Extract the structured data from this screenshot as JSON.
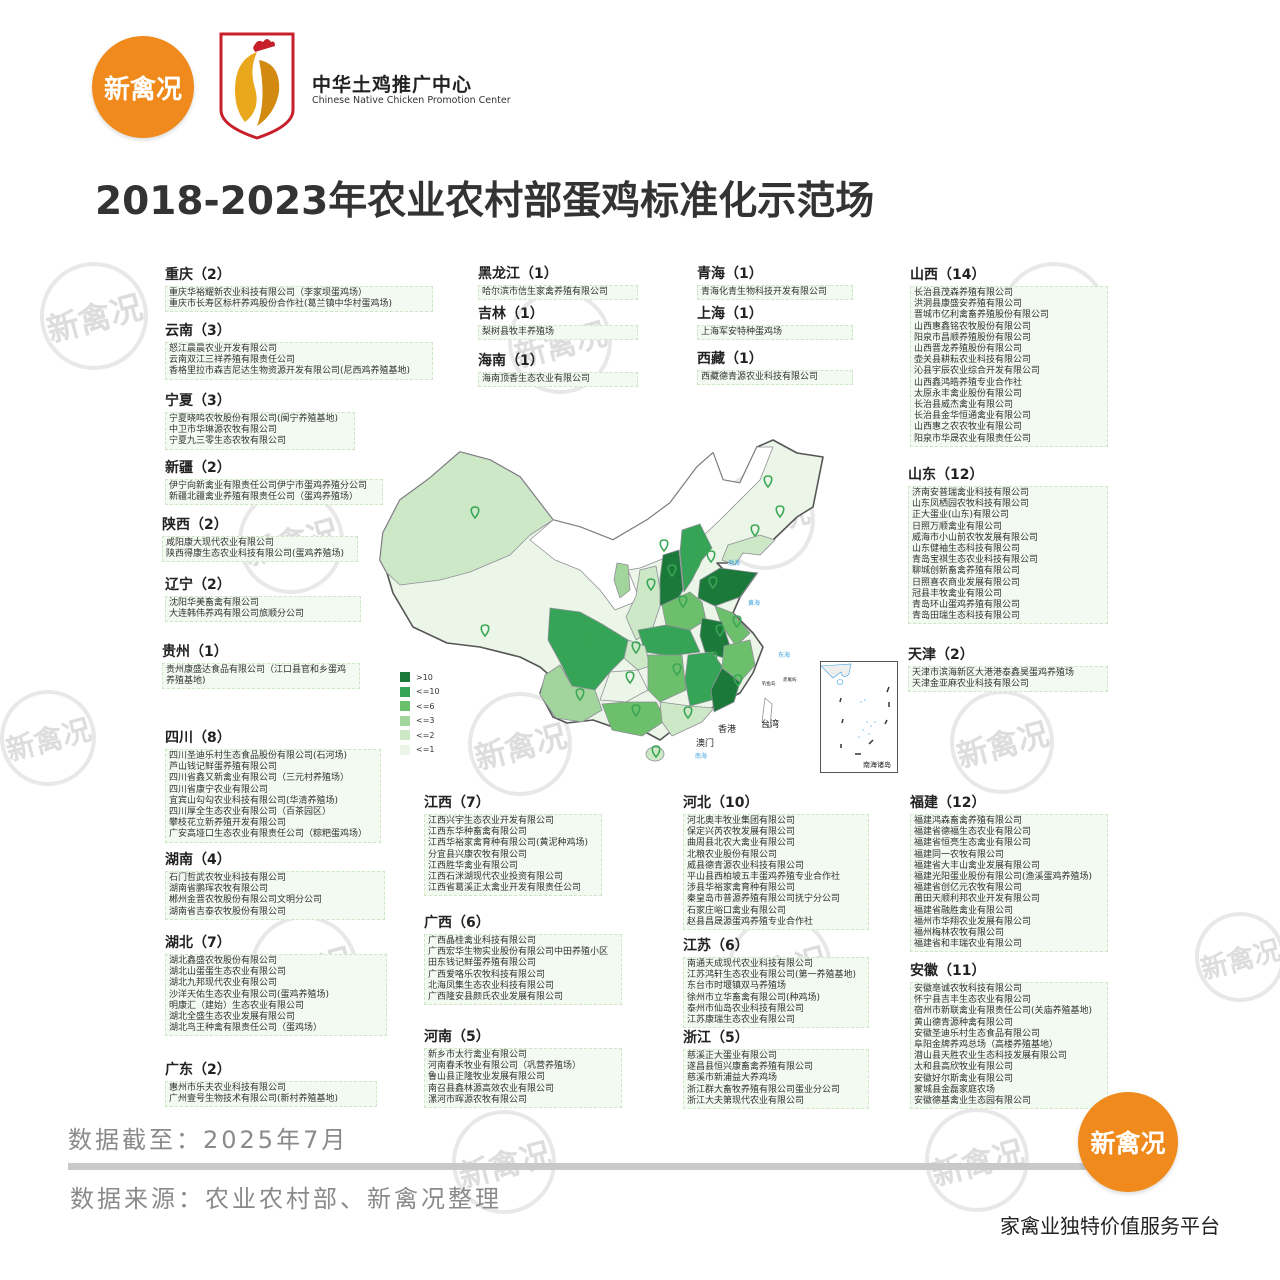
{
  "header": {
    "brand_logo_text": "新禽况",
    "org_name": "中华土鸡推广中心",
    "org_name_en": "Chinese Native Chicken Promotion Center",
    "title": "2018-2023年农业农村部蛋鸡标准化示范场"
  },
  "watermark_text": "新禽况",
  "provinces": [
    {
      "name": "重庆",
      "count": 2,
      "companies": [
        "重庆华裕耀新农业科技有限公司（李家坝蛋鸡场）",
        "重庆市长寿区标杆养鸡股份合作社(葛兰镇中华村蛋鸡场)"
      ]
    },
    {
      "name": "云南",
      "count": 3,
      "companies": [
        "怒江晨晨农业开发有限公司",
        "云南双江三祥养殖有限责任公司",
        "香格里拉市森吉尼达生物资源开发有限公司(尼西鸡养殖基地)"
      ]
    },
    {
      "name": "宁夏",
      "count": 3,
      "companies": [
        "宁夏晓鸣农牧股份有限公司(闽宁养殖基地)",
        "中卫市华琳源农牧有限公司",
        "宁夏九三零生态农牧有限公司"
      ]
    },
    {
      "name": "新疆",
      "count": 2,
      "companies": [
        "伊宁向新禽业有限责任公司伊宁市蛋鸡养殖分公司",
        "新疆北疆禽业养殖有限责任公司（蛋鸡养殖场）"
      ]
    },
    {
      "name": "陕西",
      "count": 2,
      "companies": [
        "咸阳康大现代农业有限公司",
        "陕西得康生态农业科技有限公司(蛋鸡养殖场)"
      ]
    },
    {
      "name": "辽宁",
      "count": 2,
      "companies": [
        "沈阳华美畜禽有限公司",
        "大连韩伟养鸡有限公司旅顺分公司"
      ]
    },
    {
      "name": "贵州",
      "count": 1,
      "companies": [
        "贵州康盛达食品有限公司（江口县官和乡蛋鸡",
        "养殖基地)"
      ]
    },
    {
      "name": "四川",
      "count": 8,
      "companies": [
        "四川圣迪乐村生态食品股份有限公司(石河场)",
        "芦山钱记鲜蛋养殖有限公司",
        "四川省鑫又新禽业有限公司（三元村养殖场）",
        "四川省康宁农业有限公司",
        "宜宾山勾勾农业科技有限公司(华清养殖场)",
        "四川厚全生态农业有限公司（百茶园区）",
        "攀枝花立新养殖开发有限公司",
        "广安高垭口生态农业有限责任公司（粽粑蛋鸡场）"
      ]
    },
    {
      "name": "湖南",
      "count": 4,
      "companies": [
        "石门哲武农牧业科技有限公司",
        "湖南省鹏珲农牧有限公司",
        "郴州金晋农牧股份有限公司文明分公司",
        "湖南省吉泰农牧股份有限公司"
      ]
    },
    {
      "name": "湖北",
      "count": 7,
      "companies": [
        "湖北鑫盛农牧股份有限公司",
        "湖北山蛋蛋生态农业有限公司",
        "湖北九邦现代农业有限公司",
        "沙洋天佑生态农业有限公司(蛋鸡养殖场)",
        "明康汇（建始）生态农业有限公司",
        "湖北全盛生态农业发展有限公司",
        "湖北鸟王种禽有限责任公司（蛋鸡场）"
      ]
    },
    {
      "name": "广东",
      "count": 2,
      "companies": [
        "惠州市乐夫农业科技有限公司",
        "广州壹号生物技术有限公司(新村养殖基地)"
      ]
    },
    {
      "name": "黑龙江",
      "count": 1,
      "companies": [
        "哈尔滨市信生家禽养殖有限公司"
      ]
    },
    {
      "name": "吉林",
      "count": 1,
      "companies": [
        "梨树县牧丰养殖场"
      ]
    },
    {
      "name": "海南",
      "count": 1,
      "companies": [
        "海南顶香生态农业有限公司"
      ]
    },
    {
      "name": "青海",
      "count": 1,
      "companies": [
        "青海化青生物科技开发有限公司"
      ]
    },
    {
      "name": "上海",
      "count": 1,
      "companies": [
        "上海军安特种蛋鸡场"
      ]
    },
    {
      "name": "西藏",
      "count": 1,
      "companies": [
        "西藏德青源农业科技有限公司"
      ]
    },
    {
      "name": "山西",
      "count": 14,
      "companies": [
        "长治县茂森养殖有限公司",
        "洪洞县康盛安养殖有限公司",
        "晋城市亿利禽畜养殖股份有限公司",
        "山西惠鑫铭农牧股份有限公司",
        "阳泉市昌顺养殖股份有限公司",
        "山西晋龙养殖股份有限公司",
        "壶关县耕耘农业科技有限公司",
        "沁县宇辰农业综合开发有限公司",
        "山西鑫鸿皓养殖专业合作社",
        "太原永丰禽业股份有限公司",
        "长治县威杰禽业有限公司",
        "长治县金华恒通禽业有限公司",
        "山西惠之农农牧业有限公司",
        "阳泉市华晟农业有限责任公司"
      ]
    },
    {
      "name": "山东",
      "count": 12,
      "companies": [
        "济南安普瑞禽业科技有限公司",
        "山东凤栖园农牧科技有限公司",
        "正大蛋业(山东)有限公司",
        "日照万顺禽业有限公司",
        "威海市小山前农牧发展有限公司",
        "山东健袖生态科技有限公司",
        "青岛宝祺生态农业科技有限公司",
        "聊城创新畜禽养殖有限公司",
        "日照喜农商业发展有限公司",
        "冠县丰牧禽业有限公司",
        "青岛环山蛋鸡养殖有限公司",
        "青岛田瑞生态科技有限公司"
      ]
    },
    {
      "name": "天津",
      "count": 2,
      "companies": [
        "天津市滨海新区大港港泰鑫昊蛋鸡养殖场",
        "天津金亚麻农业科技有限公司"
      ]
    },
    {
      "name": "江西",
      "count": 7,
      "companies": [
        "江西兴宇生态农业开发有限公司",
        "江西东华种畜禽有限公司",
        "江西华裕家禽育种有限公司(黄泥种鸡场)",
        "分宜县兴康农牧有限公司",
        "江西胜华禽业有限公司",
        "江西石洣湖现代农业投资有限公司",
        "江西省葛溪正太禽业开发有限责任公司"
      ]
    },
    {
      "name": "广西",
      "count": 6,
      "companies": [
        "广西晶桂禽业科技有限公司",
        "广西宏华生物实业股份有限公司中田养殖小区",
        "田东钱记鲜蛋养殖有限公司",
        "广西爱咯乐农牧科技有限公司",
        "北海凤集生态农业科技有限公司",
        "广西隆安县颜氏农业发展有限公司"
      ]
    },
    {
      "name": "河南",
      "count": 5,
      "companies": [
        "新乡市太行禽业有限公司",
        "河南春禾牧业有限公司（巩营养殖场）",
        "鲁山县正隆牧业发展有限公司",
        "南召县鑫林源高效农业有限公司",
        "漯河市晖源农牧有限公司"
      ]
    },
    {
      "name": "河北",
      "count": 10,
      "companies": [
        "河北奥丰牧业集团有限公司",
        "保定兴芮农牧发展有限公司",
        "曲周县北农大禽业有限公司",
        "北粮农业股份有限公司",
        "威县德青源农业科技有限公司",
        "平山县西柏坡五丰蛋鸡养殖专业合作社",
        "涉县华裕家禽育种有限公司",
        "秦皇岛市普源养殖有限公司抚宁分公司",
        "石家庄峪口禽业有限公司",
        "赵县昌晟源蛋鸡养殖专业合作社"
      ]
    },
    {
      "name": "江苏",
      "count": 6,
      "companies": [
        "南通天成现代农业科技有限公司",
        "江苏鸿轩生态农业有限公司(第一养殖基地)",
        "东台市时堰镇双马养殖场",
        "徐州市立华畜禽有限公司(种鸡场)",
        "泰州市仙岛农业科技有限公司",
        "江苏康瑞生态农业有限公司"
      ]
    },
    {
      "name": "浙江",
      "count": 5,
      "companies": [
        "慈溪正大蛋业有限公司",
        "遂昌县恒兴康畜禽养殖有限公司",
        "慈溪市新浦益大养鸡场",
        "浙江群大畜牧养殖有限公司蛋业分公司",
        "浙江大夫第现代农业有限公司"
      ]
    },
    {
      "name": "福建",
      "count": 12,
      "companies": [
        "福建鸿森畜禽养殖有限公司",
        "福建省德福生态农业有限公司",
        "福建省恒亮生态禽业有限公司",
        "福建同一农牧有限公司",
        "福建省大丰山禽业发展有限公司",
        "福建光阳蛋业股份有限公司(渔溪蛋鸡养殖场)",
        "福建省创亿元农牧有限公司",
        "莆田天顺利邦农业开发有限公司",
        "福建省融胜禽业有限公司",
        "福州市华翔农业发展有限公司",
        "福州梅林农牧有限公司",
        "福建省和丰瑞农业有限公司"
      ]
    },
    {
      "name": "安徽",
      "count": 11,
      "companies": [
        "安徽亳诚农牧科技有限公司",
        "怀宁县吉丰生态农业有限公司",
        "宿州市新联禽业有限责任公司(关庙养殖基地)",
        "黄山德青源种禽有限公司",
        "安徽圣迪乐村生态食品有限公司",
        "阜阳金牌养鸡总场（高楼养殖基地）",
        "潜山县天胜农业生态科技发展有限公司",
        "太和县高欣牧业有限公司",
        "安徽好尔斯禽业有限公司",
        "蒙城县金磊家庭农场",
        "安徽德基禽业生态园有限公司"
      ]
    }
  ],
  "map": {
    "legend": [
      {
        "label": ">10",
        "color": "#1b7a3a"
      },
      {
        "label": "<=10",
        "color": "#35a457"
      },
      {
        "label": "<=6",
        "color": "#6cbf6b"
      },
      {
        "label": "<=3",
        "color": "#a2d59b"
      },
      {
        "label": "<=2",
        "color": "#cde8c6"
      },
      {
        "label": "<=1",
        "color": "#ebf6e8"
      }
    ],
    "labels": {
      "hk": "香港",
      "macau": "澳门",
      "taiwan": "台湾",
      "bohai": "渤海",
      "yellow_sea": "黄海",
      "east_sea": "东海",
      "south_sea": "南海",
      "diaoyu": "钓鱼岛",
      "chiwei": "赤尾屿",
      "inset": "南海诸岛"
    }
  },
  "footer": {
    "data_date": "数据截至：2025年7月",
    "data_source": "数据来源：农业农村部、新禽况整理",
    "brand_logo_text": "新禽况",
    "slogan": "家禽业独特价值服务平台"
  }
}
